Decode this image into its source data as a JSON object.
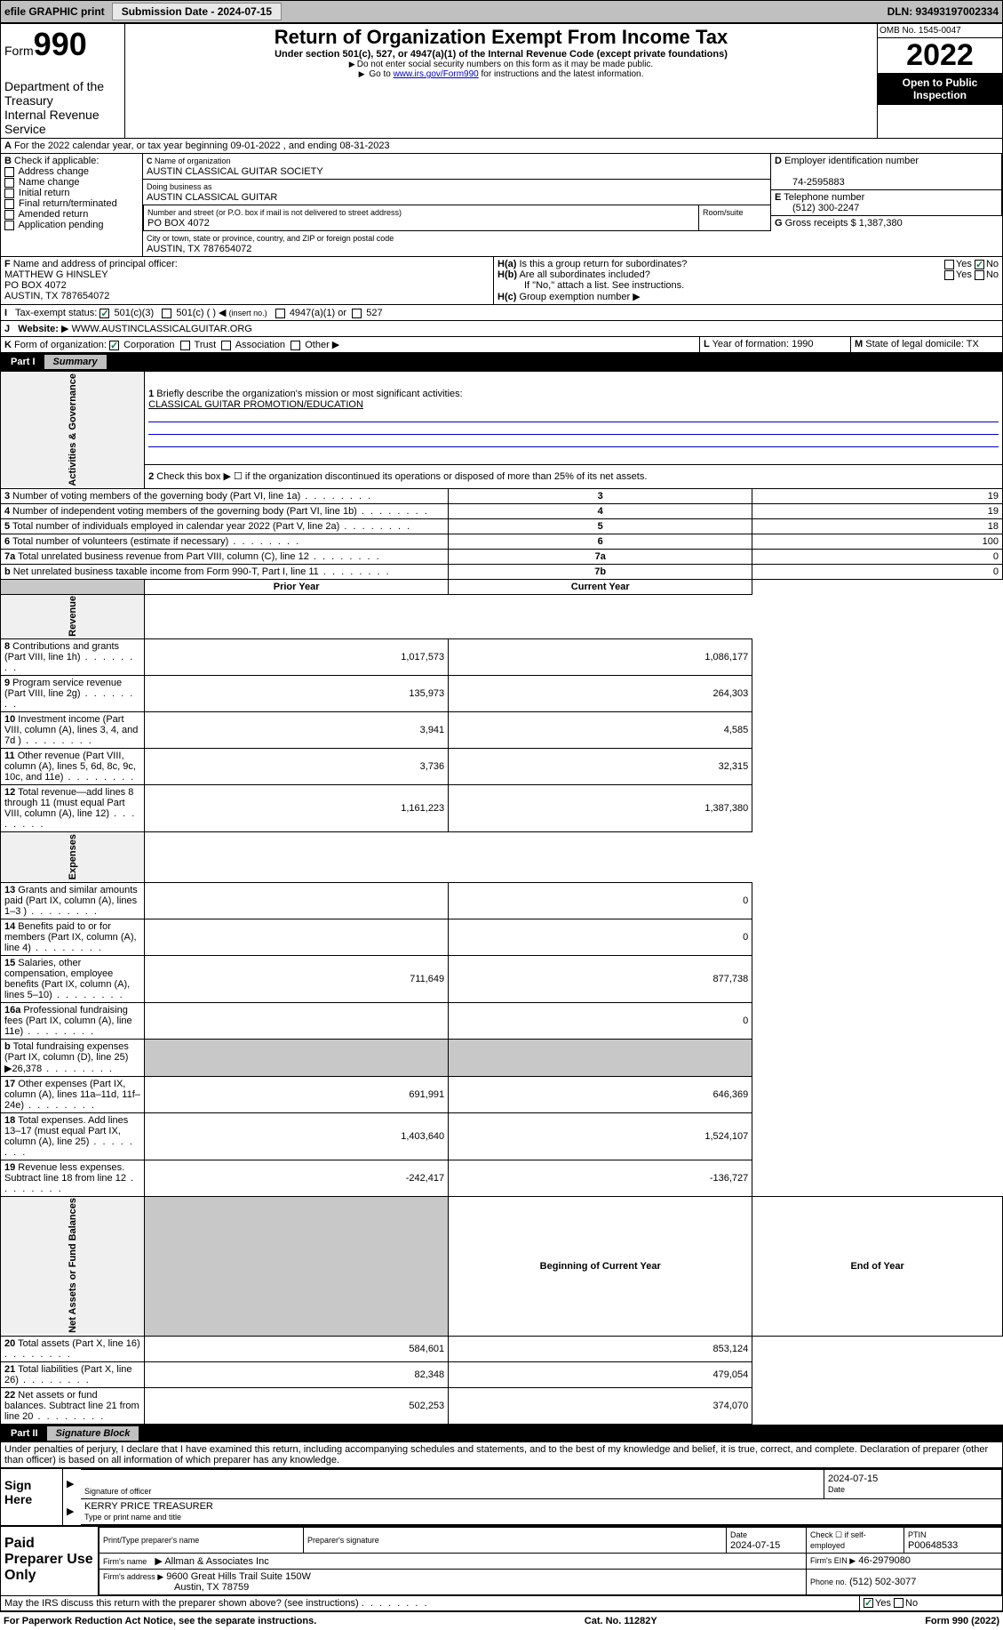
{
  "topbar": {
    "efile": "efile GRAPHIC print",
    "submission_label": "Submission Date - 2024-07-15",
    "dln": "DLN: 93493197002334"
  },
  "header": {
    "form_word": "Form",
    "form_num": "990",
    "dept": "Department of the Treasury",
    "irs": "Internal Revenue Service",
    "title": "Return of Organization Exempt From Income Tax",
    "sub": "Under section 501(c), 527, or 4947(a)(1) of the Internal Revenue Code (except private foundations)",
    "note1": "Do not enter social security numbers on this form as it may be made public.",
    "note2_a": "Go to ",
    "note2_link": "www.irs.gov/Form990",
    "note2_b": " for instructions and the latest information.",
    "omb": "OMB No. 1545-0047",
    "year": "2022",
    "inspect": "Open to Public Inspection"
  },
  "A": {
    "text": "For the 2022 calendar year, or tax year beginning 09-01-2022   , and ending 08-31-2023"
  },
  "B": {
    "label": "Check if applicable:",
    "items": [
      "Address change",
      "Name change",
      "Initial return",
      "Final return/terminated",
      "Amended return",
      "Application pending"
    ]
  },
  "C": {
    "name_label": "Name of organization",
    "name": "AUSTIN CLASSICAL GUITAR SOCIETY",
    "dba_label": "Doing business as",
    "dba": "AUSTIN CLASSICAL GUITAR",
    "street_label": "Number and street (or P.O. box if mail is not delivered to street address)",
    "room_label": "Room/suite",
    "street": "PO BOX 4072",
    "city_label": "City or town, state or province, country, and ZIP or foreign postal code",
    "city": "AUSTIN, TX  787654072"
  },
  "D": {
    "label": "Employer identification number",
    "value": "74-2595883"
  },
  "E": {
    "label": "Telephone number",
    "value": "(512) 300-2247"
  },
  "G": {
    "label": "Gross receipts $",
    "value": "1,387,380"
  },
  "F": {
    "label": "Name and address of principal officer:",
    "name": "MATTHEW G HINSLEY",
    "addr1": "PO BOX 4072",
    "addr2": "AUSTIN, TX  787654072"
  },
  "H": {
    "a": "Is this a group return for subordinates?",
    "b": "Are all subordinates included?",
    "note": "If \"No,\" attach a list. See instructions.",
    "c": "Group exemption number"
  },
  "I": {
    "label": "Tax-exempt status:",
    "o1": "501(c)(3)",
    "o2": "501(c) (  )",
    "o2b": "(insert no.)",
    "o3": "4947(a)(1) or",
    "o4": "527"
  },
  "J": {
    "label": "Website:",
    "value": "WWW.AUSTINCLASSICALGUITAR.ORG"
  },
  "K": {
    "label": "Form of organization:",
    "o1": "Corporation",
    "o2": "Trust",
    "o3": "Association",
    "o4": "Other"
  },
  "L": {
    "label": "Year of formation: 1990"
  },
  "M": {
    "label": "State of legal domicile: TX"
  },
  "part1": {
    "title": "Part I",
    "label": "Summary"
  },
  "summary": {
    "l1_label": "Briefly describe the organization's mission or most significant activities:",
    "l1_value": "CLASSICAL GUITAR PROMOTION/EDUCATION",
    "l2": "Check this box ▶ ☐  if the organization discontinued its operations or disposed of more than 25% of its net assets.",
    "rows_gov": [
      {
        "n": "3",
        "t": "Number of voting members of the governing body (Part VI, line 1a)",
        "box": "3",
        "v": "19"
      },
      {
        "n": "4",
        "t": "Number of independent voting members of the governing body (Part VI, line 1b)",
        "box": "4",
        "v": "19"
      },
      {
        "n": "5",
        "t": "Total number of individuals employed in calendar year 2022 (Part V, line 2a)",
        "box": "5",
        "v": "18"
      },
      {
        "n": "6",
        "t": "Total number of volunteers (estimate if necessary)",
        "box": "6",
        "v": "100"
      },
      {
        "n": "7a",
        "t": "Total unrelated business revenue from Part VIII, column (C), line 12",
        "box": "7a",
        "v": "0"
      },
      {
        "n": "b",
        "t": "Net unrelated business taxable income from Form 990-T, Part I, line 11",
        "box": "7b",
        "v": "0"
      }
    ],
    "col_prior": "Prior Year",
    "col_current": "Current Year",
    "revenue": [
      {
        "n": "8",
        "t": "Contributions and grants (Part VIII, line 1h)",
        "p": "1,017,573",
        "c": "1,086,177"
      },
      {
        "n": "9",
        "t": "Program service revenue (Part VIII, line 2g)",
        "p": "135,973",
        "c": "264,303"
      },
      {
        "n": "10",
        "t": "Investment income (Part VIII, column (A), lines 3, 4, and 7d )",
        "p": "3,941",
        "c": "4,585"
      },
      {
        "n": "11",
        "t": "Other revenue (Part VIII, column (A), lines 5, 6d, 8c, 9c, 10c, and 11e)",
        "p": "3,736",
        "c": "32,315"
      },
      {
        "n": "12",
        "t": "Total revenue—add lines 8 through 11 (must equal Part VIII, column (A), line 12)",
        "p": "1,161,223",
        "c": "1,387,380"
      }
    ],
    "expenses": [
      {
        "n": "13",
        "t": "Grants and similar amounts paid (Part IX, column (A), lines 1–3 )",
        "p": "",
        "c": "0"
      },
      {
        "n": "14",
        "t": "Benefits paid to or for members (Part IX, column (A), line 4)",
        "p": "",
        "c": "0"
      },
      {
        "n": "15",
        "t": "Salaries, other compensation, employee benefits (Part IX, column (A), lines 5–10)",
        "p": "711,649",
        "c": "877,738"
      },
      {
        "n": "16a",
        "t": "Professional fundraising fees (Part IX, column (A), line 11e)",
        "p": "",
        "c": "0"
      },
      {
        "n": "b",
        "t": "Total fundraising expenses (Part IX, column (D), line 25) ▶26,378",
        "p": "SHADE",
        "c": "SHADE"
      },
      {
        "n": "17",
        "t": "Other expenses (Part IX, column (A), lines 11a–11d, 11f–24e)",
        "p": "691,991",
        "c": "646,369"
      },
      {
        "n": "18",
        "t": "Total expenses. Add lines 13–17 (must equal Part IX, column (A), line 25)",
        "p": "1,403,640",
        "c": "1,524,107"
      },
      {
        "n": "19",
        "t": "Revenue less expenses. Subtract line 18 from line 12",
        "p": "-242,417",
        "c": "-136,727"
      }
    ],
    "col_begin": "Beginning of Current Year",
    "col_end": "End of Year",
    "netassets": [
      {
        "n": "20",
        "t": "Total assets (Part X, line 16)",
        "p": "584,601",
        "c": "853,124"
      },
      {
        "n": "21",
        "t": "Total liabilities (Part X, line 26)",
        "p": "82,348",
        "c": "479,054"
      },
      {
        "n": "22",
        "t": "Net assets or fund balances. Subtract line 21 from line 20",
        "p": "502,253",
        "c": "374,070"
      }
    ]
  },
  "vlabels": {
    "gov": "Activities & Governance",
    "rev": "Revenue",
    "exp": "Expenses",
    "net": "Net Assets or Fund Balances"
  },
  "part2": {
    "title": "Part II",
    "label": "Signature Block"
  },
  "decl": "Under penalties of perjury, I declare that I have examined this return, including accompanying schedules and statements, and to the best of my knowledge and belief, it is true, correct, and complete. Declaration of preparer (other than officer) is based on all information of which preparer has any knowledge.",
  "sign": {
    "label": "Sign Here",
    "sig_label": "Signature of officer",
    "date_label": "Date",
    "date": "2024-07-15",
    "name": "KERRY PRICE  TREASURER",
    "name_label": "Type or print name and title"
  },
  "paid": {
    "label": "Paid Preparer Use Only",
    "h1": "Print/Type preparer's name",
    "h2": "Preparer's signature",
    "h3": "Date",
    "h3v": "2024-07-15",
    "h4": "Check ☐ if self-employed",
    "h5": "PTIN",
    "h5v": "P00648533",
    "firm_label": "Firm's name",
    "firm": "Allman & Associates Inc",
    "ein_label": "Firm's EIN ▶",
    "ein": "46-2979080",
    "addr_label": "Firm's address ▶",
    "addr1": "9600 Great Hills Trail Suite 150W",
    "addr2": "Austin, TX  78759",
    "phone_label": "Phone no.",
    "phone": "(512) 502-3077"
  },
  "discuss": "May the IRS discuss this return with the preparer shown above? (see instructions)",
  "footer": {
    "l": "For Paperwork Reduction Act Notice, see the separate instructions.",
    "c": "Cat. No. 11282Y",
    "r": "Form 990 (2022)"
  }
}
